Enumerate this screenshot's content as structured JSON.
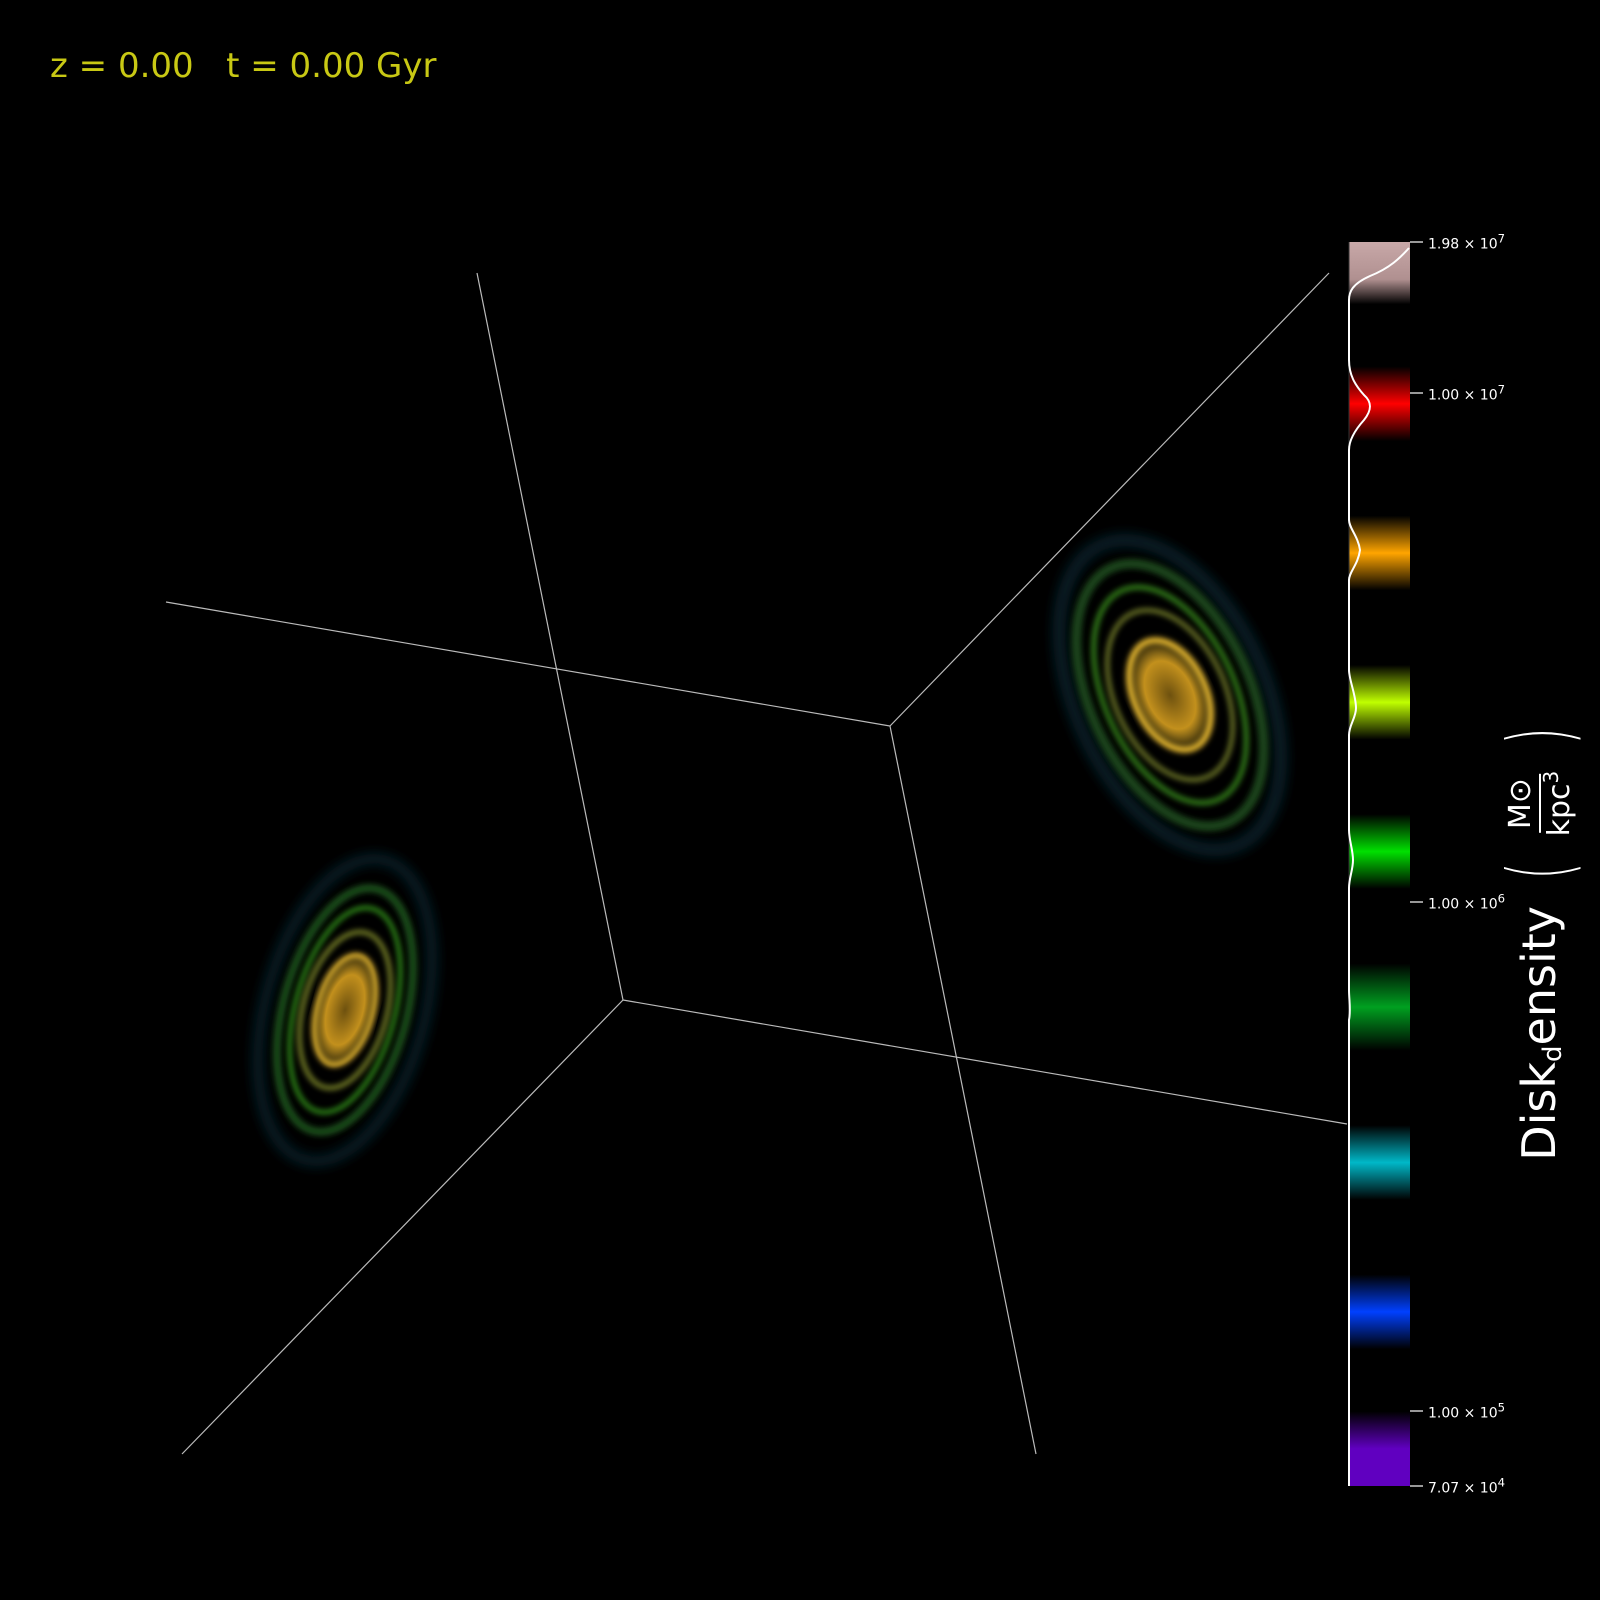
{
  "header": {
    "redshift": "z = 0.00",
    "time": "t = 0.00 Gyr"
  },
  "colorbar": {
    "title_main": "Disk",
    "title_sub": "d",
    "title_rest": "ensity",
    "unit_num": "M⊙",
    "unit_den": "kpc",
    "unit_den_exp": "3",
    "ticks": [
      {
        "mantissa": "1.98 × 10",
        "exp": "7"
      },
      {
        "mantissa": "1.00 × 10",
        "exp": "7"
      },
      {
        "mantissa": "1.00 × 10",
        "exp": "6"
      },
      {
        "mantissa": "1.00 × 10",
        "exp": "5"
      },
      {
        "mantissa": "7.07 × 10",
        "exp": "4"
      }
    ],
    "bands": [
      "#c8a8a8",
      "#ff0000",
      "#ffa500",
      "#c0ff00",
      "#00e000",
      "#00a020",
      "#00b8c8",
      "#0040ff",
      "#6000c0"
    ]
  },
  "colors": {
    "header": "#c8c814",
    "edge": "#bbbbbb",
    "galaxy_core": "#f0b020",
    "galaxy_arm": "#40c020"
  }
}
